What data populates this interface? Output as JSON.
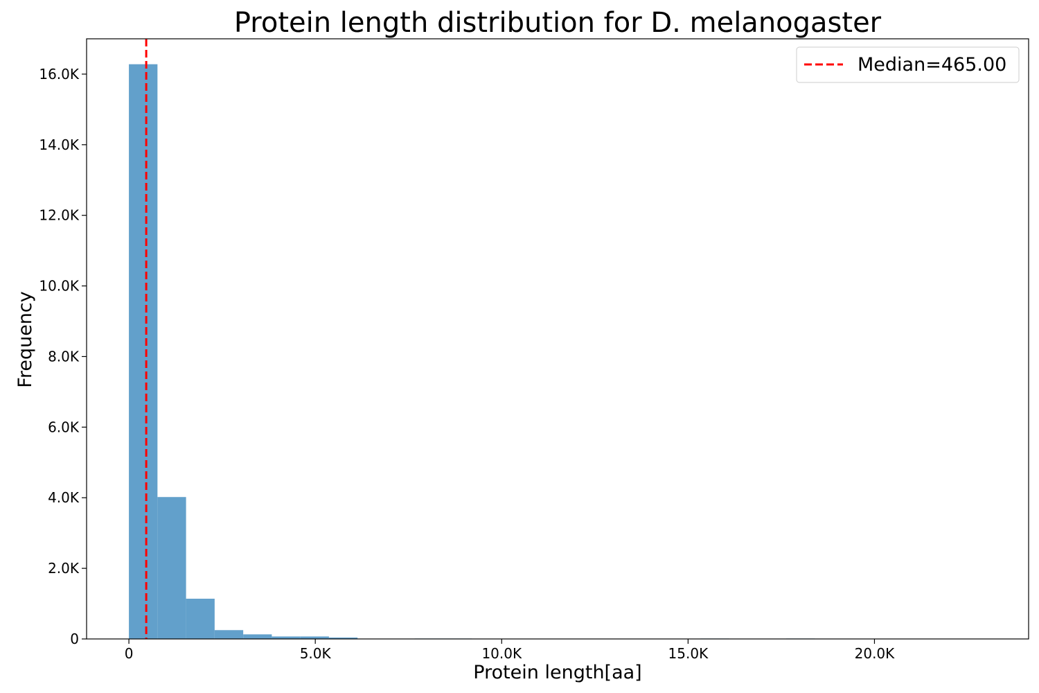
{
  "chart_data": {
    "type": "bar",
    "title": "Protein length distribution for D. melanogaster",
    "xlabel": "Protein length[aa]",
    "ylabel": "Frequency",
    "xlim": [
      -1135,
      24135
    ],
    "ylim": [
      0,
      17000
    ],
    "bin_width": 766.7,
    "bins": [
      {
        "start": 0,
        "value": 16280
      },
      {
        "start": 766.7,
        "value": 4020
      },
      {
        "start": 1533.3,
        "value": 1140
      },
      {
        "start": 2300,
        "value": 250
      },
      {
        "start": 3066.7,
        "value": 130
      },
      {
        "start": 3833.3,
        "value": 70
      },
      {
        "start": 4600,
        "value": 70
      },
      {
        "start": 5366.7,
        "value": 40
      },
      {
        "start": 6133.3,
        "value": 4
      },
      {
        "start": 6900,
        "value": 4
      },
      {
        "start": 7666.7,
        "value": 12
      },
      {
        "start": 8433.3,
        "value": 12
      },
      {
        "start": 9200,
        "value": 3
      },
      {
        "start": 9966.7,
        "value": 2
      },
      {
        "start": 10733.3,
        "value": 2
      },
      {
        "start": 11500,
        "value": 2
      },
      {
        "start": 12266.7,
        "value": 2
      },
      {
        "start": 13033.3,
        "value": 2
      },
      {
        "start": 13800,
        "value": 2
      },
      {
        "start": 14566.7,
        "value": 2
      },
      {
        "start": 15333.3,
        "value": 12
      },
      {
        "start": 16100,
        "value": 2
      },
      {
        "start": 16866.7,
        "value": 2
      },
      {
        "start": 17633.3,
        "value": 12
      },
      {
        "start": 18400,
        "value": 2
      },
      {
        "start": 19166.7,
        "value": 2
      },
      {
        "start": 19933.3,
        "value": 2
      },
      {
        "start": 20700,
        "value": 2
      },
      {
        "start": 21466.7,
        "value": 2
      },
      {
        "start": 22233.3,
        "value": 2
      }
    ],
    "x_ticks": [
      {
        "value": 0,
        "label": "0"
      },
      {
        "value": 5000,
        "label": "5.0K"
      },
      {
        "value": 10000,
        "label": "10.0K"
      },
      {
        "value": 15000,
        "label": "15.0K"
      },
      {
        "value": 20000,
        "label": "20.0K"
      }
    ],
    "y_ticks": [
      {
        "value": 0,
        "label": "0"
      },
      {
        "value": 2000,
        "label": "2.0K"
      },
      {
        "value": 4000,
        "label": "4.0K"
      },
      {
        "value": 6000,
        "label": "6.0K"
      },
      {
        "value": 8000,
        "label": "8.0K"
      },
      {
        "value": 10000,
        "label": "10.0K"
      },
      {
        "value": 12000,
        "label": "12.0K"
      },
      {
        "value": 14000,
        "label": "14.0K"
      },
      {
        "value": 16000,
        "label": "16.0K"
      }
    ],
    "median": {
      "value": 465,
      "label": "Median=465.00"
    },
    "legend": {
      "position": "top-right"
    },
    "grid": false,
    "colors": {
      "bars": "#62a0cb",
      "median": "#ff0000",
      "axis": "#000000"
    }
  }
}
